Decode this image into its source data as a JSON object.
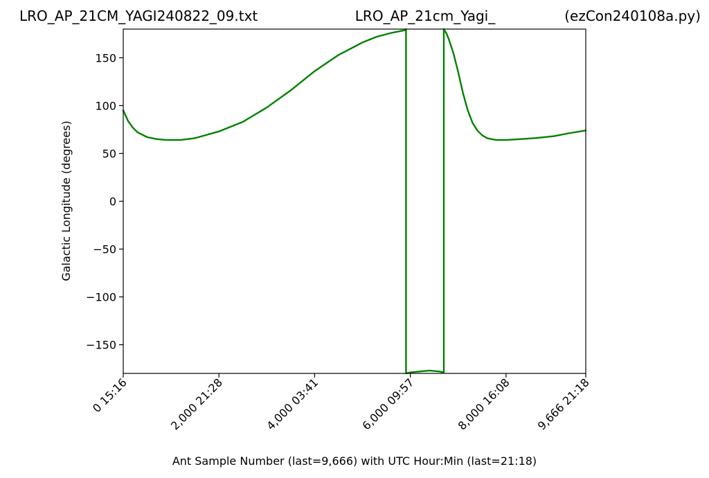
{
  "chart_data": {
    "type": "line",
    "title_left": "LRO_AP_21CM_YAGI240822_09.txt",
    "title_center": "LRO_AP_21cm_Yagi_",
    "title_right": "(ezCon240108a.py)",
    "xlabel": "Ant Sample Number (last=9,666) with UTC Hour:Min (last=21:18)",
    "ylabel": "Galactic Longitude (degrees)",
    "xlim": [
      0,
      9666
    ],
    "ylim": [
      -180,
      180
    ],
    "grid": false,
    "line_color": "#008000",
    "xticks": [
      {
        "value": 0,
        "label": "0  15:16"
      },
      {
        "value": 2000,
        "label": "2,000  21:28"
      },
      {
        "value": 4000,
        "label": "4,000  03:41"
      },
      {
        "value": 6000,
        "label": "6,000  09:57"
      },
      {
        "value": 8000,
        "label": "8,000  16:08"
      },
      {
        "value": 9666,
        "label": "9,666  21:18"
      }
    ],
    "yticks": [
      {
        "value": 150,
        "label": "150"
      },
      {
        "value": 100,
        "label": "100"
      },
      {
        "value": 50,
        "label": "50"
      },
      {
        "value": 0,
        "label": "0"
      },
      {
        "value": -50,
        "label": "−50"
      },
      {
        "value": -100,
        "label": "−100"
      },
      {
        "value": -150,
        "label": "−150"
      }
    ],
    "series": [
      {
        "x": [
          0,
          100,
          200,
          300,
          500,
          700,
          900,
          1200,
          1500,
          2000,
          2500,
          3000,
          3500,
          4000,
          4500,
          5000,
          5300,
          5600,
          5800,
          5900,
          5910,
          5910,
          6000,
          6200,
          6400,
          6600,
          6700,
          6700,
          6710,
          6750,
          6800,
          6900,
          7000,
          7100,
          7200,
          7300,
          7400,
          7500,
          7600,
          7700,
          7800,
          8000,
          8300,
          8600,
          9000,
          9300,
          9666
        ],
        "y": [
          95,
          84,
          77,
          72,
          67,
          65,
          64,
          64,
          66,
          73,
          83,
          98,
          116,
          136,
          153,
          166,
          172,
          176,
          178,
          179,
          180,
          -180,
          -179,
          -178,
          -177,
          -178,
          -179,
          180,
          179,
          176,
          170,
          155,
          135,
          113,
          95,
          82,
          74,
          69,
          66,
          65,
          64,
          64,
          65,
          66,
          68,
          71,
          74
        ]
      }
    ]
  }
}
